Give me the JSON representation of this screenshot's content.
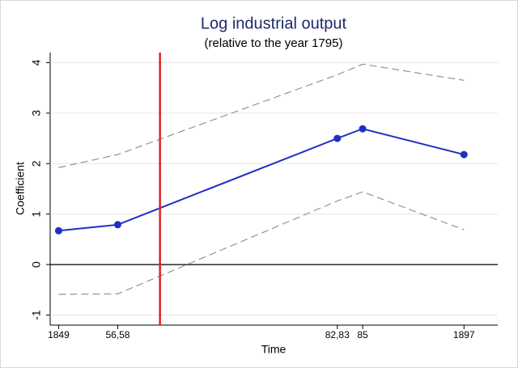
{
  "chart_data": {
    "type": "line",
    "title": "Log industrial output",
    "subtitle": "(relative to the year 1795)",
    "xlabel": "Time",
    "ylabel": "Coefficient",
    "x": [
      1849,
      1856,
      1882,
      1885,
      1897
    ],
    "series": [
      {
        "color": "#1f2fc4",
        "markers": true,
        "dashed": false,
        "values": [
          0.67,
          0.79,
          2.5,
          2.69,
          2.18
        ]
      },
      {
        "color": "#8a8a8a",
        "markers": false,
        "dashed": true,
        "values": [
          1.92,
          2.18,
          3.76,
          3.97,
          3.65
        ]
      },
      {
        "color": "#8a8a8a",
        "markers": false,
        "dashed": true,
        "values": [
          -0.59,
          -0.58,
          1.26,
          1.44,
          0.69
        ]
      }
    ],
    "xlim": [
      1848,
      1901
    ],
    "xticks": [
      1849,
      {
        "value": 1856,
        "label": "56,58"
      },
      {
        "value": 1882,
        "label": "82,83"
      },
      {
        "value": 1885,
        "label": "85"
      },
      1897
    ],
    "ylim": [
      -1.2,
      4.2
    ],
    "yticks": [
      -1,
      0,
      1,
      2,
      3,
      4
    ],
    "grid": true,
    "hline": {
      "value": 0,
      "color": "#000000"
    },
    "vline": {
      "value": 1861,
      "color": "#e32222"
    }
  }
}
